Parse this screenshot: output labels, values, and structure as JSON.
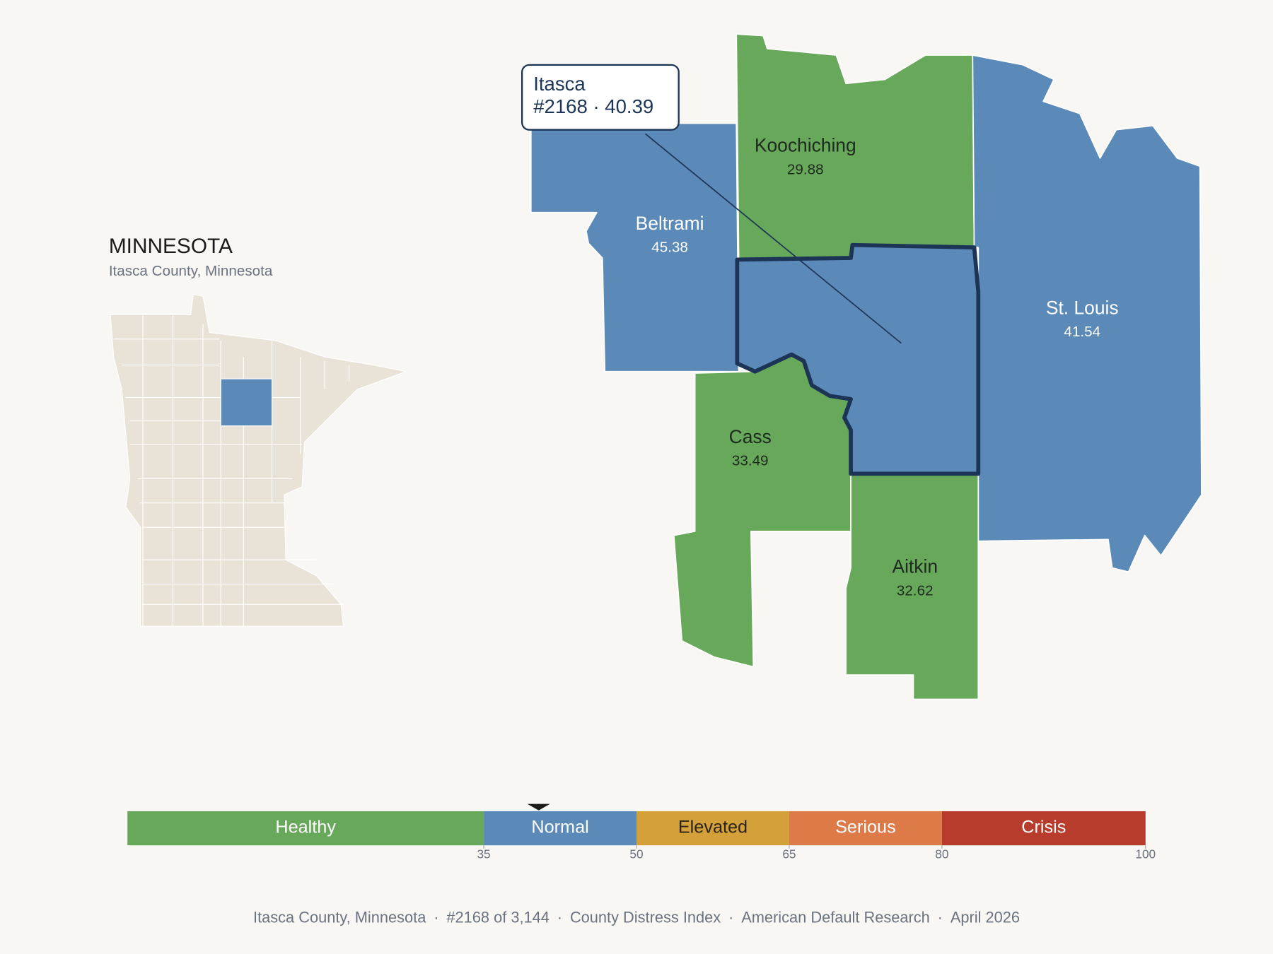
{
  "header": {
    "title": "MINNESOTA",
    "subtitle": "Itasca County, Minnesota"
  },
  "counties": [
    {
      "name": "Koochiching",
      "value": 29.88,
      "color": "#67a85a",
      "label_color": "#1f2a1f"
    },
    {
      "name": "Beltrami",
      "value": 45.38,
      "color": "#5b8ab9",
      "label_color": "#ffffff"
    },
    {
      "name": "St. Louis",
      "value": 41.54,
      "color": "#5b8ab9",
      "label_color": "#ffffff"
    },
    {
      "name": "Cass",
      "value": 33.49,
      "color": "#67a85a",
      "label_color": "#1f2a1f"
    },
    {
      "name": "Aitkin",
      "value": 32.62,
      "color": "#67a85a",
      "label_color": "#1f2a1f"
    },
    {
      "name": "Itasca",
      "value": 40.39,
      "color": "#5b8ab9",
      "highlight": true
    }
  ],
  "callout": {
    "title": "Itasca",
    "detail": "#2168 · 40.39"
  },
  "legend": {
    "range": [
      0,
      100
    ],
    "ticks": [
      35,
      50,
      65,
      80,
      100
    ],
    "bands": [
      {
        "label": "Healthy",
        "color": "#67a85a",
        "label_color": "#ffffff"
      },
      {
        "label": "Normal",
        "color": "#5b8ab9",
        "label_color": "#ffffff"
      },
      {
        "label": "Elevated",
        "color": "#d4a03a",
        "label_color": "#2a2418"
      },
      {
        "label": "Serious",
        "color": "#dc7a48",
        "label_color": "#ffffff"
      },
      {
        "label": "Crisis",
        "color": "#b83c2c",
        "label_color": "#ffffff"
      }
    ]
  },
  "footer": {
    "separator": "·",
    "items": [
      "Itasca County, Minnesota",
      "#2168 of 3,144",
      "County Distress Index",
      "American Default Research",
      "April 2026"
    ]
  }
}
